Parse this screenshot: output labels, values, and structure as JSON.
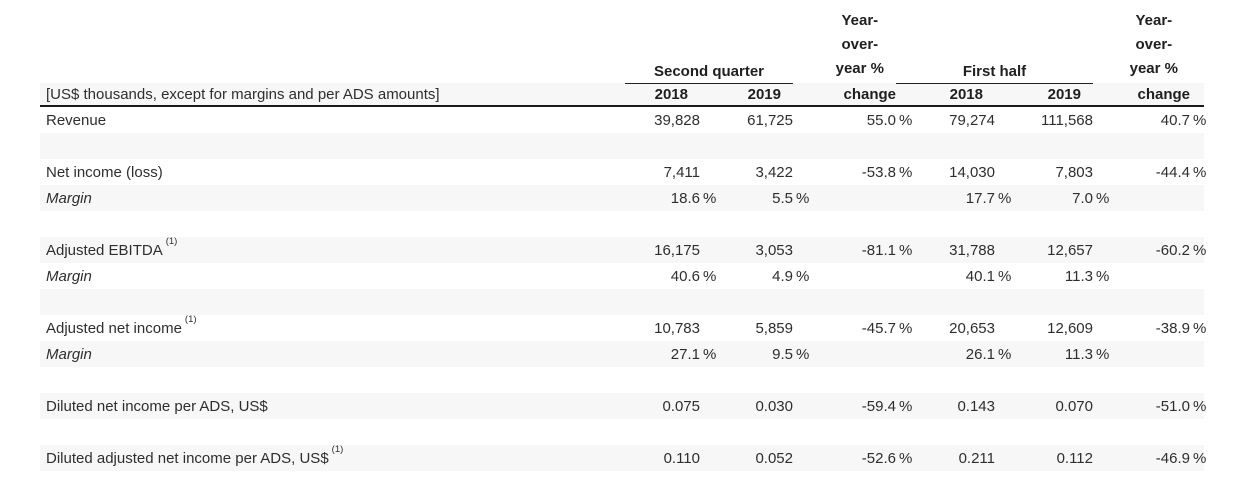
{
  "colors": {
    "background": "#ffffff",
    "stripe": "#f7f7f7",
    "text": "#2e2e2e",
    "heading": "#1f1f1f",
    "rule_heavy": "#1a1a1a",
    "rule_light": "#222222"
  },
  "table": {
    "unit_note": "[US$ thousands, except for margins and per ADS amounts]",
    "column_groups": {
      "second_quarter": "Second quarter",
      "first_half": "First half"
    },
    "yoy_header": {
      "lines": [
        "Year-",
        "over-",
        "year %"
      ],
      "change_label": "change"
    },
    "year_headers": {
      "sq_2018": "2018",
      "sq_2019": "2019",
      "fh_2018": "2018",
      "fh_2019": "2019"
    },
    "rows": [
      {
        "label": "Revenue",
        "values": [
          "39,828",
          "61,725",
          "55.0 %",
          "79,274",
          "111,568",
          "40.7 %"
        ]
      },
      {
        "spacer": true
      },
      {
        "label": "Net income (loss)",
        "values": [
          "7,411",
          "3,422",
          "-53.8 %",
          "14,030",
          "7,803",
          "-44.4 %"
        ]
      },
      {
        "label": "Margin",
        "italic": true,
        "values": [
          "18.6 %",
          "5.5 %",
          "",
          "17.7 %",
          "7.0 %",
          ""
        ]
      },
      {
        "spacer": true
      },
      {
        "label": "Adjusted EBITDA",
        "sup": "(1)",
        "values": [
          "16,175",
          "3,053",
          "-81.1 %",
          "31,788",
          "12,657",
          "-60.2 %"
        ]
      },
      {
        "label": "Margin",
        "italic": true,
        "values": [
          "40.6 %",
          "4.9 %",
          "",
          "40.1 %",
          "11.3 %",
          ""
        ]
      },
      {
        "spacer": true
      },
      {
        "label": "Adjusted net income",
        "sup": "(1)",
        "values": [
          "10,783",
          "5,859",
          "-45.7 %",
          "20,653",
          "12,609",
          "-38.9 %"
        ]
      },
      {
        "label": "Margin",
        "italic": true,
        "values": [
          "27.1 %",
          "9.5 %",
          "",
          "26.1 %",
          "11.3 %",
          ""
        ]
      },
      {
        "spacer": true
      },
      {
        "label": "Diluted net income per ADS, US$",
        "values": [
          "0.075",
          "0.030",
          "-59.4 %",
          "0.143",
          "0.070",
          "-51.0 %"
        ]
      },
      {
        "spacer": true
      },
      {
        "label": "Diluted adjusted net income per ADS, US$",
        "sup": "(1)",
        "values": [
          "0.110",
          "0.052",
          "-52.6 %",
          "0.211",
          "0.112",
          "-46.9 %"
        ]
      }
    ]
  }
}
